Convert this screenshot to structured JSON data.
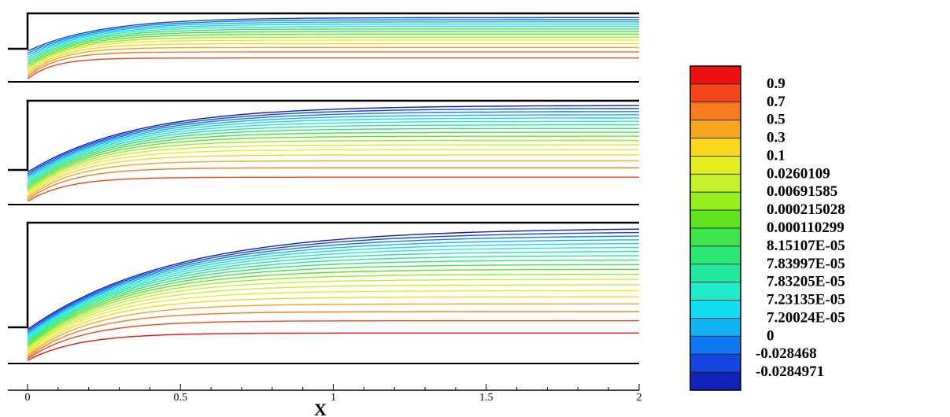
{
  "chart_data": {
    "type": "contour",
    "panels": 3,
    "xlabel": "X",
    "xlim": [
      0,
      2
    ],
    "x_ticks": [
      "0",
      "0.5",
      "1",
      "1.5",
      "2"
    ],
    "step_x": 0,
    "legend_position": "right",
    "colorbar": {
      "labels": [
        "0.9",
        "0.7",
        "0.5",
        "0.3",
        "0.1",
        "0.0260109",
        "0.00691585",
        "0.000215028",
        "0.000110299",
        "8.15107E-05",
        "7.83997E-05",
        "7.83205E-05",
        "7.23135E-05",
        "7.20024E-05",
        "0",
        "-0.028468",
        "-0.0284971"
      ],
      "colors": [
        "#ee1111",
        "#f4441a",
        "#f77a1e",
        "#f7a61e",
        "#f7d71e",
        "#e6ef1e",
        "#c4f22a",
        "#96ee1e",
        "#5fe41e",
        "#3ee44e",
        "#2ce872",
        "#22e89e",
        "#1cecc8",
        "#10dcf0",
        "#10b4f4",
        "#1078f0",
        "#1446e0",
        "#1022b8"
      ]
    }
  }
}
